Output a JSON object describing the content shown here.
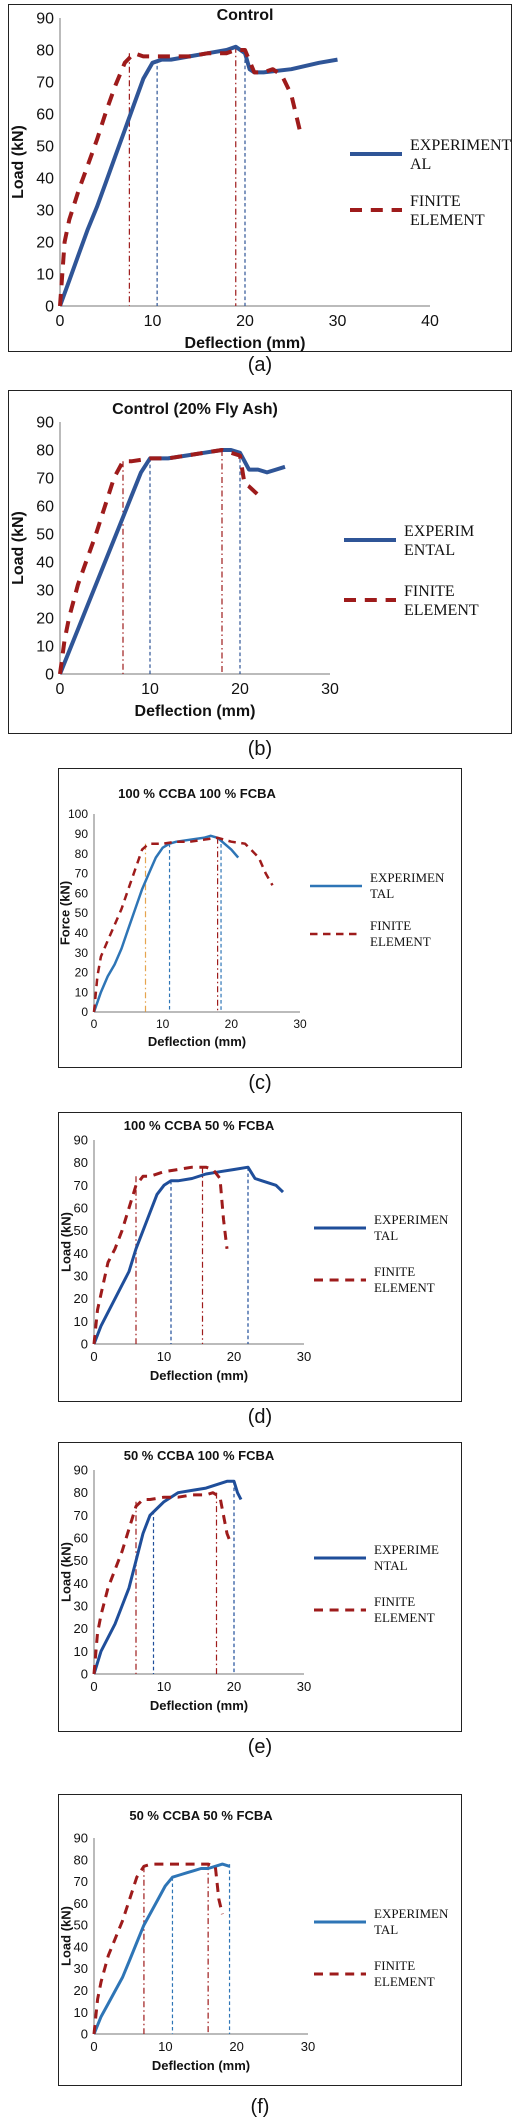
{
  "chart_data": [
    {
      "type": "line",
      "title": "Control",
      "caption": "(a)",
      "xlabel": "Deflection  (mm)",
      "ylabel": "Load (kN)",
      "xlim": [
        0,
        40
      ],
      "ylim": [
        0,
        90
      ],
      "xticks": [
        "0",
        "10",
        "20",
        "30",
        "40"
      ],
      "yticks": [
        "0",
        "10",
        "20",
        "30",
        "40",
        "50",
        "60",
        "70",
        "80",
        "90"
      ],
      "legend_position": "right",
      "series": [
        {
          "name": "EXPERIMENTAL",
          "legend_lines": [
            "EXPERIMENT",
            "AL"
          ],
          "color": "#2F5597",
          "style": "solid",
          "x": [
            0,
            1,
            2,
            3,
            4,
            5,
            6,
            7,
            8,
            9,
            10,
            11,
            12,
            14,
            16,
            18,
            19,
            20,
            20.5,
            21,
            22,
            25,
            28,
            30
          ],
          "y": [
            0,
            8,
            16,
            24,
            31,
            39,
            47,
            55,
            63,
            71,
            76,
            77,
            77,
            78,
            79,
            80,
            81,
            79,
            74,
            73,
            73,
            74,
            76,
            77
          ]
        },
        {
          "name": "FINITE ELEMENT",
          "legend_lines": [
            "FINITE",
            "ELEMENT"
          ],
          "color": "#9E1B1B",
          "style": "dashed",
          "x": [
            0,
            0.5,
            1,
            2,
            3,
            4,
            5,
            6,
            7,
            8,
            9,
            10,
            12,
            14,
            16,
            18,
            19,
            20,
            21,
            22,
            23,
            24,
            25,
            25.5,
            26
          ],
          "y": [
            0,
            20,
            27,
            36,
            44,
            52,
            61,
            69,
            76,
            79,
            78,
            78,
            78,
            78,
            79,
            79,
            80,
            80,
            73,
            73,
            74,
            72,
            66,
            60,
            54
          ]
        }
      ],
      "markers": [
        {
          "x": 7.5,
          "y": 79,
          "color": "#9E1B1B",
          "style": "dashdot"
        },
        {
          "x": 10.5,
          "y": 77,
          "color": "#2F5597",
          "style": "dashed"
        },
        {
          "x": 19,
          "y": 81,
          "color": "#9E1B1B",
          "style": "dashdot"
        },
        {
          "x": 20,
          "y": 79,
          "color": "#2F5597",
          "style": "dashed"
        }
      ]
    },
    {
      "type": "line",
      "title": "Control (20% Fly Ash)",
      "caption": "(b)",
      "xlabel": "Deflection (mm)",
      "ylabel": "Load (kN)",
      "xlim": [
        0,
        30
      ],
      "ylim": [
        0,
        90
      ],
      "xticks": [
        "0",
        "10",
        "20",
        "30"
      ],
      "yticks": [
        "0",
        "10",
        "20",
        "30",
        "40",
        "50",
        "60",
        "70",
        "80",
        "90"
      ],
      "legend_position": "right",
      "series": [
        {
          "name": "EXPERIMENTAL",
          "legend_lines": [
            "EXPERIM",
            "ENTAL"
          ],
          "color": "#2F5597",
          "style": "solid",
          "x": [
            0,
            1,
            2,
            3,
            4,
            5,
            6,
            7,
            8,
            9,
            10,
            12,
            14,
            16,
            18,
            19,
            20,
            21,
            22,
            23,
            24,
            25
          ],
          "y": [
            0,
            8,
            16,
            24,
            32,
            40,
            48,
            56,
            64,
            72,
            77,
            77,
            78,
            79,
            80,
            80,
            79,
            73,
            73,
            72,
            73,
            74
          ]
        },
        {
          "name": "FINITE ELEMENT",
          "legend_lines": [
            "FINITE",
            "ELEMENT"
          ],
          "color": "#9E1B1B",
          "style": "dashed",
          "x": [
            0,
            0.5,
            1,
            2,
            3,
            4,
            5,
            6,
            7,
            8,
            10,
            12,
            14,
            16,
            18,
            19,
            20,
            20.5,
            21,
            22
          ],
          "y": [
            0,
            12,
            20,
            32,
            41,
            50,
            60,
            70,
            76,
            76,
            77,
            77,
            78,
            79,
            80,
            79,
            78,
            68,
            67,
            64
          ]
        }
      ],
      "markers": [
        {
          "x": 7,
          "y": 76,
          "color": "#9E1B1B",
          "style": "dashdot"
        },
        {
          "x": 10,
          "y": 77,
          "color": "#2F5597",
          "style": "dashed"
        },
        {
          "x": 18,
          "y": 80,
          "color": "#9E1B1B",
          "style": "dashdot"
        },
        {
          "x": 20,
          "y": 79,
          "color": "#2F5597",
          "style": "dashed"
        }
      ]
    },
    {
      "type": "line",
      "title": "100 %  CCBA 100 % FCBA",
      "caption": "(c)",
      "xlabel": "Deflection (mm)",
      "ylabel": "Force (kN)",
      "xlim": [
        0,
        30
      ],
      "ylim": [
        0,
        100
      ],
      "xticks": [
        "0",
        "10",
        "20",
        "30"
      ],
      "yticks": [
        "0",
        "10",
        "20",
        "30",
        "40",
        "50",
        "60",
        "70",
        "80",
        "90",
        "100"
      ],
      "legend_position": "right",
      "series": [
        {
          "name": "EXPERIMENTAL",
          "legend_lines": [
            "EXPERIMEN",
            "TAL"
          ],
          "color": "#2E75B6",
          "style": "solid",
          "x": [
            0,
            1,
            2,
            3,
            4,
            5,
            6,
            7,
            8,
            9,
            10,
            11,
            12,
            14,
            16,
            17,
            18,
            19,
            20,
            21
          ],
          "y": [
            0,
            10,
            18,
            24,
            32,
            42,
            52,
            62,
            70,
            78,
            83,
            85,
            86,
            87,
            88,
            89,
            88,
            85,
            82,
            78
          ]
        },
        {
          "name": "FINITE ELEMENT",
          "legend_lines": [
            "FINITE",
            "ELEMENT"
          ],
          "color": "#9E1B1B",
          "style": "dashed",
          "x": [
            0,
            0.5,
            1,
            2,
            3,
            4,
            5,
            6,
            7,
            8,
            10,
            12,
            14,
            16,
            18,
            20,
            22,
            24,
            25,
            26
          ],
          "y": [
            0,
            18,
            28,
            36,
            44,
            52,
            62,
            72,
            82,
            85,
            85,
            86,
            86,
            87,
            88,
            86,
            85,
            78,
            70,
            64
          ]
        }
      ],
      "markers": [
        {
          "x": 7.5,
          "y": 85,
          "color": "#E6A44E",
          "style": "dashdot"
        },
        {
          "x": 11,
          "y": 85,
          "color": "#2E75B6",
          "style": "dashed"
        },
        {
          "x": 18,
          "y": 88,
          "color": "#9E1B1B",
          "style": "dashdot"
        },
        {
          "x": 18.5,
          "y": 88,
          "color": "#2E75B6",
          "style": "dashed"
        }
      ]
    },
    {
      "type": "line",
      "title": "100 % CCBA 50 % FCBA",
      "caption": "(d)",
      "xlabel": "Deflection (mm)",
      "ylabel": "Load (kN)",
      "xlim": [
        0,
        30
      ],
      "ylim": [
        0,
        90
      ],
      "xticks": [
        "0",
        "10",
        "20",
        "30"
      ],
      "yticks": [
        "0",
        "10",
        "20",
        "30",
        "40",
        "50",
        "60",
        "70",
        "80",
        "90"
      ],
      "legend_position": "right",
      "series": [
        {
          "name": "EXPERIMENTAL",
          "legend_lines": [
            "EXPERIMEN",
            "TAL"
          ],
          "color": "#1F4E9A",
          "style": "solid",
          "x": [
            0,
            1,
            2,
            3,
            4,
            5,
            6,
            7,
            8,
            9,
            10,
            11,
            12,
            14,
            16,
            18,
            20,
            22,
            23,
            24,
            25,
            26,
            27
          ],
          "y": [
            0,
            8,
            14,
            20,
            26,
            32,
            42,
            50,
            58,
            66,
            70,
            72,
            72,
            73,
            75,
            76,
            77,
            78,
            73,
            72,
            71,
            70,
            67
          ]
        },
        {
          "name": "FINITE ELEMENT",
          "legend_lines": [
            "FINITE",
            "ELEMENT"
          ],
          "color": "#9E1B1B",
          "style": "dashed",
          "x": [
            0,
            0.5,
            1,
            2,
            3,
            4,
            5,
            6,
            7,
            8,
            10,
            12,
            14,
            16,
            17,
            18,
            18.5,
            19
          ],
          "y": [
            0,
            15,
            22,
            36,
            42,
            50,
            60,
            70,
            74,
            74,
            76,
            77,
            78,
            78,
            77,
            73,
            55,
            42
          ]
        }
      ],
      "markers": [
        {
          "x": 6,
          "y": 74,
          "color": "#9E1B1B",
          "style": "dashdot"
        },
        {
          "x": 11,
          "y": 72,
          "color": "#1F4E9A",
          "style": "dashed"
        },
        {
          "x": 15.5,
          "y": 78,
          "color": "#9E1B1B",
          "style": "dashdot"
        },
        {
          "x": 22,
          "y": 78,
          "color": "#1F4E9A",
          "style": "dashed"
        }
      ]
    },
    {
      "type": "line",
      "title": "50 % CCBA 100 % FCBA",
      "caption": "(e)",
      "xlabel": "Deflection (mm)",
      "ylabel": "Load (kN)",
      "xlim": [
        0,
        30
      ],
      "ylim": [
        0,
        90
      ],
      "xticks": [
        "0",
        "10",
        "20",
        "30"
      ],
      "yticks": [
        "0",
        "10",
        "20",
        "30",
        "40",
        "50",
        "60",
        "70",
        "80",
        "90"
      ],
      "legend_position": "right",
      "series": [
        {
          "name": "EXPERIMENTAL",
          "legend_lines": [
            "EXPERIME",
            "NTAL"
          ],
          "color": "#1F4E9A",
          "style": "solid",
          "x": [
            0,
            1,
            2,
            3,
            4,
            5,
            6,
            7,
            8,
            9,
            10,
            11,
            12,
            14,
            16,
            18,
            19,
            20,
            20.5,
            21
          ],
          "y": [
            0,
            10,
            16,
            22,
            30,
            38,
            50,
            62,
            70,
            73,
            76,
            78,
            80,
            81,
            82,
            84,
            85,
            85,
            80,
            77
          ]
        },
        {
          "name": "FINITE ELEMENT",
          "legend_lines": [
            "FINITE",
            "ELEMENT"
          ],
          "color": "#9E1B1B",
          "style": "dashed",
          "x": [
            0,
            0.5,
            1,
            2,
            3,
            4,
            5,
            6,
            7,
            8,
            10,
            12,
            14,
            16,
            17,
            18,
            19,
            19.5
          ],
          "y": [
            0,
            18,
            26,
            38,
            46,
            54,
            64,
            74,
            77,
            77,
            78,
            78,
            79,
            79,
            80,
            78,
            62,
            58
          ]
        }
      ],
      "markers": [
        {
          "x": 6,
          "y": 76,
          "color": "#9E1B1B",
          "style": "dashdot"
        },
        {
          "x": 8.5,
          "y": 72,
          "color": "#1F4E9A",
          "style": "dashed"
        },
        {
          "x": 17.5,
          "y": 80,
          "color": "#9E1B1B",
          "style": "dashdot"
        },
        {
          "x": 20,
          "y": 85,
          "color": "#1F4E9A",
          "style": "dashed"
        }
      ]
    },
    {
      "type": "line",
      "title": "50 % CCBA 50 % FCBA",
      "caption": "(f)",
      "xlabel": "Deflection (mm)",
      "ylabel": "Load (kN)",
      "xlim": [
        0,
        30
      ],
      "ylim": [
        0,
        90
      ],
      "xticks": [
        "0",
        "10",
        "20",
        "30"
      ],
      "yticks": [
        "0",
        "10",
        "20",
        "30",
        "40",
        "50",
        "60",
        "70",
        "80",
        "90"
      ],
      "legend_position": "right",
      "series": [
        {
          "name": "EXPERIMENTAL",
          "legend_lines": [
            "EXPERIMEN",
            "TAL"
          ],
          "color": "#2E75B6",
          "style": "solid",
          "x": [
            0,
            1,
            2,
            3,
            4,
            5,
            6,
            7,
            8,
            9,
            10,
            11,
            12,
            13,
            14,
            15,
            16,
            17,
            18,
            19
          ],
          "y": [
            0,
            8,
            14,
            20,
            26,
            34,
            42,
            50,
            56,
            62,
            68,
            72,
            73,
            74,
            75,
            76,
            76,
            77,
            78,
            77
          ]
        },
        {
          "name": "FINITE ELEMENT",
          "legend_lines": [
            "FINITE",
            "ELEMENT"
          ],
          "color": "#9E1B1B",
          "style": "dashed",
          "x": [
            0,
            0.5,
            1,
            2,
            3,
            4,
            5,
            6,
            7,
            8,
            10,
            12,
            14,
            16,
            17,
            17.5,
            18
          ],
          "y": [
            0,
            16,
            24,
            36,
            44,
            52,
            62,
            72,
            77,
            78,
            78,
            78,
            78,
            78,
            77,
            62,
            55
          ]
        }
      ],
      "markers": [
        {
          "x": 7,
          "y": 77,
          "color": "#9E1B1B",
          "style": "dashdot"
        },
        {
          "x": 11,
          "y": 72,
          "color": "#2E75B6",
          "style": "dashed"
        },
        {
          "x": 16,
          "y": 78,
          "color": "#9E1B1B",
          "style": "dashdot"
        },
        {
          "x": 19,
          "y": 78,
          "color": "#2E75B6",
          "style": "dashed"
        }
      ]
    }
  ]
}
